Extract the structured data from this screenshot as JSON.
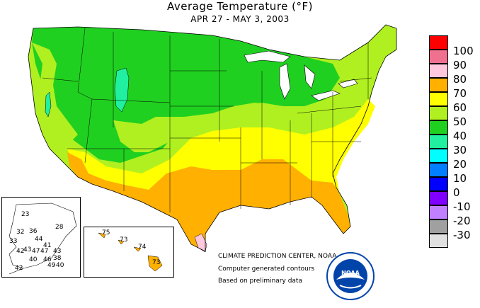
{
  "title": "Average Temperature (°F)",
  "subtitle": "APR 27 - MAY 3, 2003",
  "legend": {
    "labels": [
      "100",
      "90",
      "80",
      "70",
      "60",
      "50",
      "40",
      "30",
      "20",
      "10",
      "0",
      "-10",
      "-20",
      "-30"
    ],
    "colors": [
      "#ff0000",
      "#f07090",
      "#ffc8dc",
      "#ffb000",
      "#ffff00",
      "#b0f020",
      "#20d020",
      "#20f0a0",
      "#00ffff",
      "#0080ff",
      "#0000ff",
      "#8000ff",
      "#c080ff",
      "#a0a0a0",
      "#e0e0e0"
    ]
  },
  "credits": {
    "line1": "CLIMATE PREDICTION CENTER, NOAA",
    "line2": "Computer generated contours",
    "line3": "Based on preliminary data",
    "logo_text": "NOAA"
  },
  "alaska_stations": [
    "23",
    "28",
    "32",
    "36",
    "44",
    "33",
    "41",
    "42",
    "47",
    "47",
    "43",
    "43",
    "38",
    "40",
    "46",
    "49",
    "42",
    "40"
  ],
  "hawaii_stations": [
    "75",
    "73",
    "74",
    "73"
  ]
}
